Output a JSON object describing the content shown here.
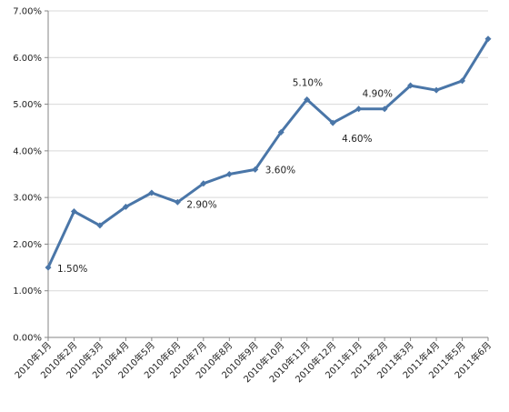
{
  "chart_data": {
    "type": "line",
    "title": "",
    "xlabel": "",
    "ylabel": "",
    "categories": [
      "2010年1月",
      "2010年2月",
      "2010年3月",
      "2010年4月",
      "2010年5月",
      "2010年6月",
      "2010年7月",
      "2010年8月",
      "2010年9月",
      "2010年10月",
      "2010年11月",
      "2010年12月",
      "2011年1月",
      "2011年2月",
      "2011年3月",
      "2011年4月",
      "2011年5月",
      "2011年6月"
    ],
    "series": [
      {
        "values": [
          1.5,
          2.7,
          2.4,
          2.8,
          3.1,
          2.9,
          3.3,
          3.5,
          3.6,
          4.4,
          5.1,
          4.6,
          4.9,
          4.9,
          5.4,
          5.3,
          5.5,
          6.4
        ]
      }
    ],
    "ylim": [
      0,
      7
    ],
    "yticks": [
      "0.00%",
      "1.00%",
      "2.00%",
      "3.00%",
      "4.00%",
      "5.00%",
      "6.00%",
      "7.00%"
    ],
    "grid": true,
    "legend": "none",
    "data_labels": [
      {
        "index": 0,
        "text": "1.50%"
      },
      {
        "index": 5,
        "text": "2.90%"
      },
      {
        "index": 8,
        "text": "3.60%"
      },
      {
        "index": 10,
        "text": "5.10%"
      },
      {
        "index": 11,
        "text": "4.60%"
      },
      {
        "index": 12,
        "text": "4.90%"
      }
    ],
    "colors": {
      "line": "#4a76a8",
      "grid": "#d9d9d9",
      "axis": "#868686"
    }
  }
}
